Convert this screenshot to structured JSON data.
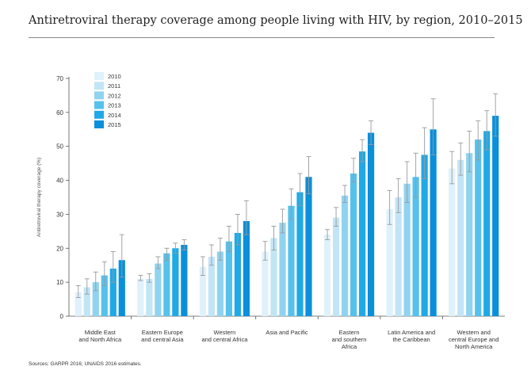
{
  "title": "Antiretroviral therapy coverage among people living with HIV, by region, 2010–2015",
  "source": "Sources: GARPR 2016; UNAIDS 2016 estimates.",
  "chart_data": {
    "type": "bar",
    "title": "Antiretroviral therapy coverage among people living with HIV, by region, 2010–2015",
    "xlabel": "",
    "ylabel": "Antiretroviral therapy coverage (%)",
    "ylim": [
      0,
      70
    ],
    "yticks": [
      0,
      10,
      20,
      30,
      40,
      50,
      60,
      70
    ],
    "grid": false,
    "legend_position": "top-left",
    "error_bars": true,
    "categories": [
      [
        "Middle East",
        "and North Africa"
      ],
      [
        "Eastern Europe",
        "and central Asia"
      ],
      [
        "Western",
        "and central Africa"
      ],
      [
        "Asia and Pacific"
      ],
      [
        "Eastern",
        "and southern",
        "Africa"
      ],
      [
        "Latin America and",
        "the Caribbean"
      ],
      [
        "Western and",
        "central Europe and",
        "North America"
      ]
    ],
    "series": [
      {
        "name": "2010",
        "color": "#dff1fb",
        "values": [
          7,
          11,
          14.5,
          19,
          24,
          31.5,
          43.5
        ],
        "lower": [
          5.5,
          10.5,
          12,
          16.5,
          22.5,
          27,
          39
        ],
        "upper": [
          9,
          12,
          17.5,
          22,
          25.5,
          37,
          48.5
        ]
      },
      {
        "name": "2011",
        "color": "#c2e5f6",
        "values": [
          8.5,
          11,
          17.5,
          23,
          29,
          35,
          46
        ],
        "lower": [
          6.5,
          10,
          15,
          19.5,
          26.5,
          30.5,
          41.5
        ],
        "upper": [
          11,
          12.5,
          21,
          26.5,
          32,
          40.5,
          51
        ]
      },
      {
        "name": "2012",
        "color": "#90d3f0",
        "values": [
          10,
          15.5,
          19,
          27.5,
          35.5,
          39,
          48
        ],
        "lower": [
          7.5,
          14,
          16.5,
          24.5,
          33.5,
          33.5,
          42.5
        ],
        "upper": [
          13,
          17.5,
          23,
          31.5,
          38.5,
          45.5,
          54.5
        ]
      },
      {
        "name": "2013",
        "color": "#56c1ec",
        "values": [
          12,
          18.5,
          22,
          32.5,
          42,
          41,
          52
        ],
        "lower": [
          9,
          16.5,
          19,
          28.5,
          39.5,
          35,
          46
        ],
        "upper": [
          16,
          20,
          26.5,
          37.5,
          46.5,
          48,
          57.5
        ]
      },
      {
        "name": "2014",
        "color": "#1fa9e6",
        "values": [
          14,
          20,
          24.5,
          36.5,
          48.5,
          47.5,
          54.5
        ],
        "lower": [
          10,
          18.5,
          21,
          32.5,
          45.5,
          40.5,
          49
        ],
        "upper": [
          19,
          21.5,
          30,
          42,
          52,
          55.5,
          60.5
        ]
      },
      {
        "name": "2015",
        "color": "#0a8fdb",
        "values": [
          16.5,
          21,
          28,
          41,
          54,
          55,
          59
        ],
        "lower": [
          11.5,
          19.5,
          24,
          36,
          50.5,
          47.5,
          53
        ],
        "upper": [
          24,
          22.5,
          34,
          47,
          57.5,
          64,
          65.5
        ]
      }
    ]
  }
}
